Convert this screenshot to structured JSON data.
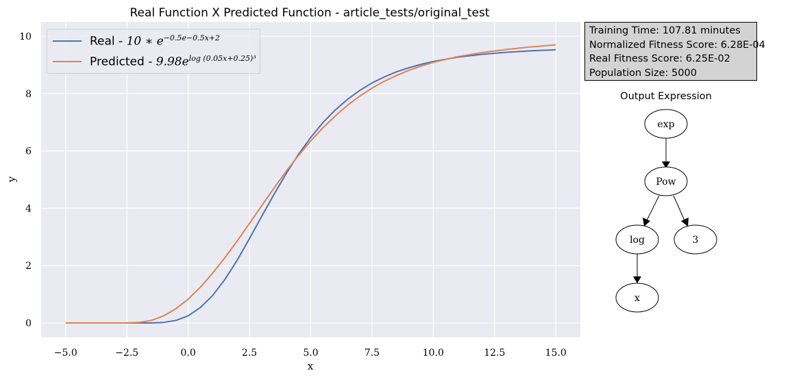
{
  "chart_data": {
    "type": "line",
    "title": "Real Function X Predicted Function - article_tests/original_test",
    "xlabel": "x",
    "ylabel": "y",
    "xlim": [
      -6.0,
      16.0
    ],
    "ylim": [
      -0.5,
      10.5
    ],
    "xticks": [
      -5.0,
      -2.5,
      0.0,
      2.5,
      5.0,
      7.5,
      10.0,
      12.5,
      15.0
    ],
    "xtick_labels": [
      "−5.0",
      "−2.5",
      "0.0",
      "2.5",
      "5.0",
      "7.5",
      "10.0",
      "12.5",
      "15.0"
    ],
    "yticks": [
      0,
      2,
      4,
      6,
      8,
      10
    ],
    "ytick_labels": [
      "0",
      "2",
      "4",
      "6",
      "8",
      "10"
    ],
    "grid": true,
    "legend_position": "top-left",
    "x": [
      -5.0,
      -4.0,
      -3.0,
      -2.5,
      -2.0,
      -1.5,
      -1.0,
      -0.5,
      0.0,
      0.5,
      1.0,
      1.5,
      2.0,
      2.5,
      3.0,
      3.5,
      4.0,
      4.5,
      5.0,
      5.5,
      6.0,
      6.5,
      7.0,
      7.5,
      8.0,
      8.5,
      9.0,
      9.5,
      10.0,
      11.0,
      12.0,
      13.0,
      14.0,
      15.0
    ],
    "series": [
      {
        "name": "Real",
        "values": [
          0.0,
          0.0,
          0.0,
          0.0,
          0.0,
          0.0,
          0.02,
          0.09,
          0.25,
          0.54,
          0.96,
          1.52,
          2.19,
          2.94,
          3.72,
          4.48,
          5.21,
          5.88,
          6.47,
          6.99,
          7.43,
          7.8,
          8.11,
          8.37,
          8.58,
          8.76,
          8.9,
          9.02,
          9.12,
          9.27,
          9.37,
          9.44,
          9.49,
          9.53
        ],
        "color": "#4c72b0"
      },
      {
        "name": "Predicted",
        "values": [
          0.0,
          0.0,
          0.0,
          0.0,
          0.02,
          0.09,
          0.25,
          0.5,
          0.83,
          1.25,
          1.74,
          2.28,
          2.86,
          3.47,
          4.09,
          4.7,
          5.29,
          5.84,
          6.35,
          6.81,
          7.22,
          7.59,
          7.91,
          8.19,
          8.43,
          8.63,
          8.81,
          8.96,
          9.09,
          9.29,
          9.43,
          9.54,
          9.63,
          9.7
        ],
        "color": "#dd8452"
      }
    ]
  },
  "legend": {
    "real_prefix": "Real - ",
    "real_formula": "10 ∗ e",
    "real_exponent": "−0.5e−0.5x+2",
    "predicted_prefix": "Predicted - ",
    "predicted_formula": "9.98e",
    "predicted_exponent": "log (0.05x+0.25)³"
  },
  "info": {
    "training_time": "Training Time: 107.81 minutes",
    "normalized_fitness": "Normalized Fitness Score: 6.28E-04",
    "real_fitness": "Real Fitness Score: 6.25E-02",
    "population": "Population Size: 5000"
  },
  "tree": {
    "title": "Output Expression",
    "nodes": {
      "exp": "exp",
      "pow": "Pow",
      "log": "log",
      "three": "3",
      "x": "x"
    }
  }
}
